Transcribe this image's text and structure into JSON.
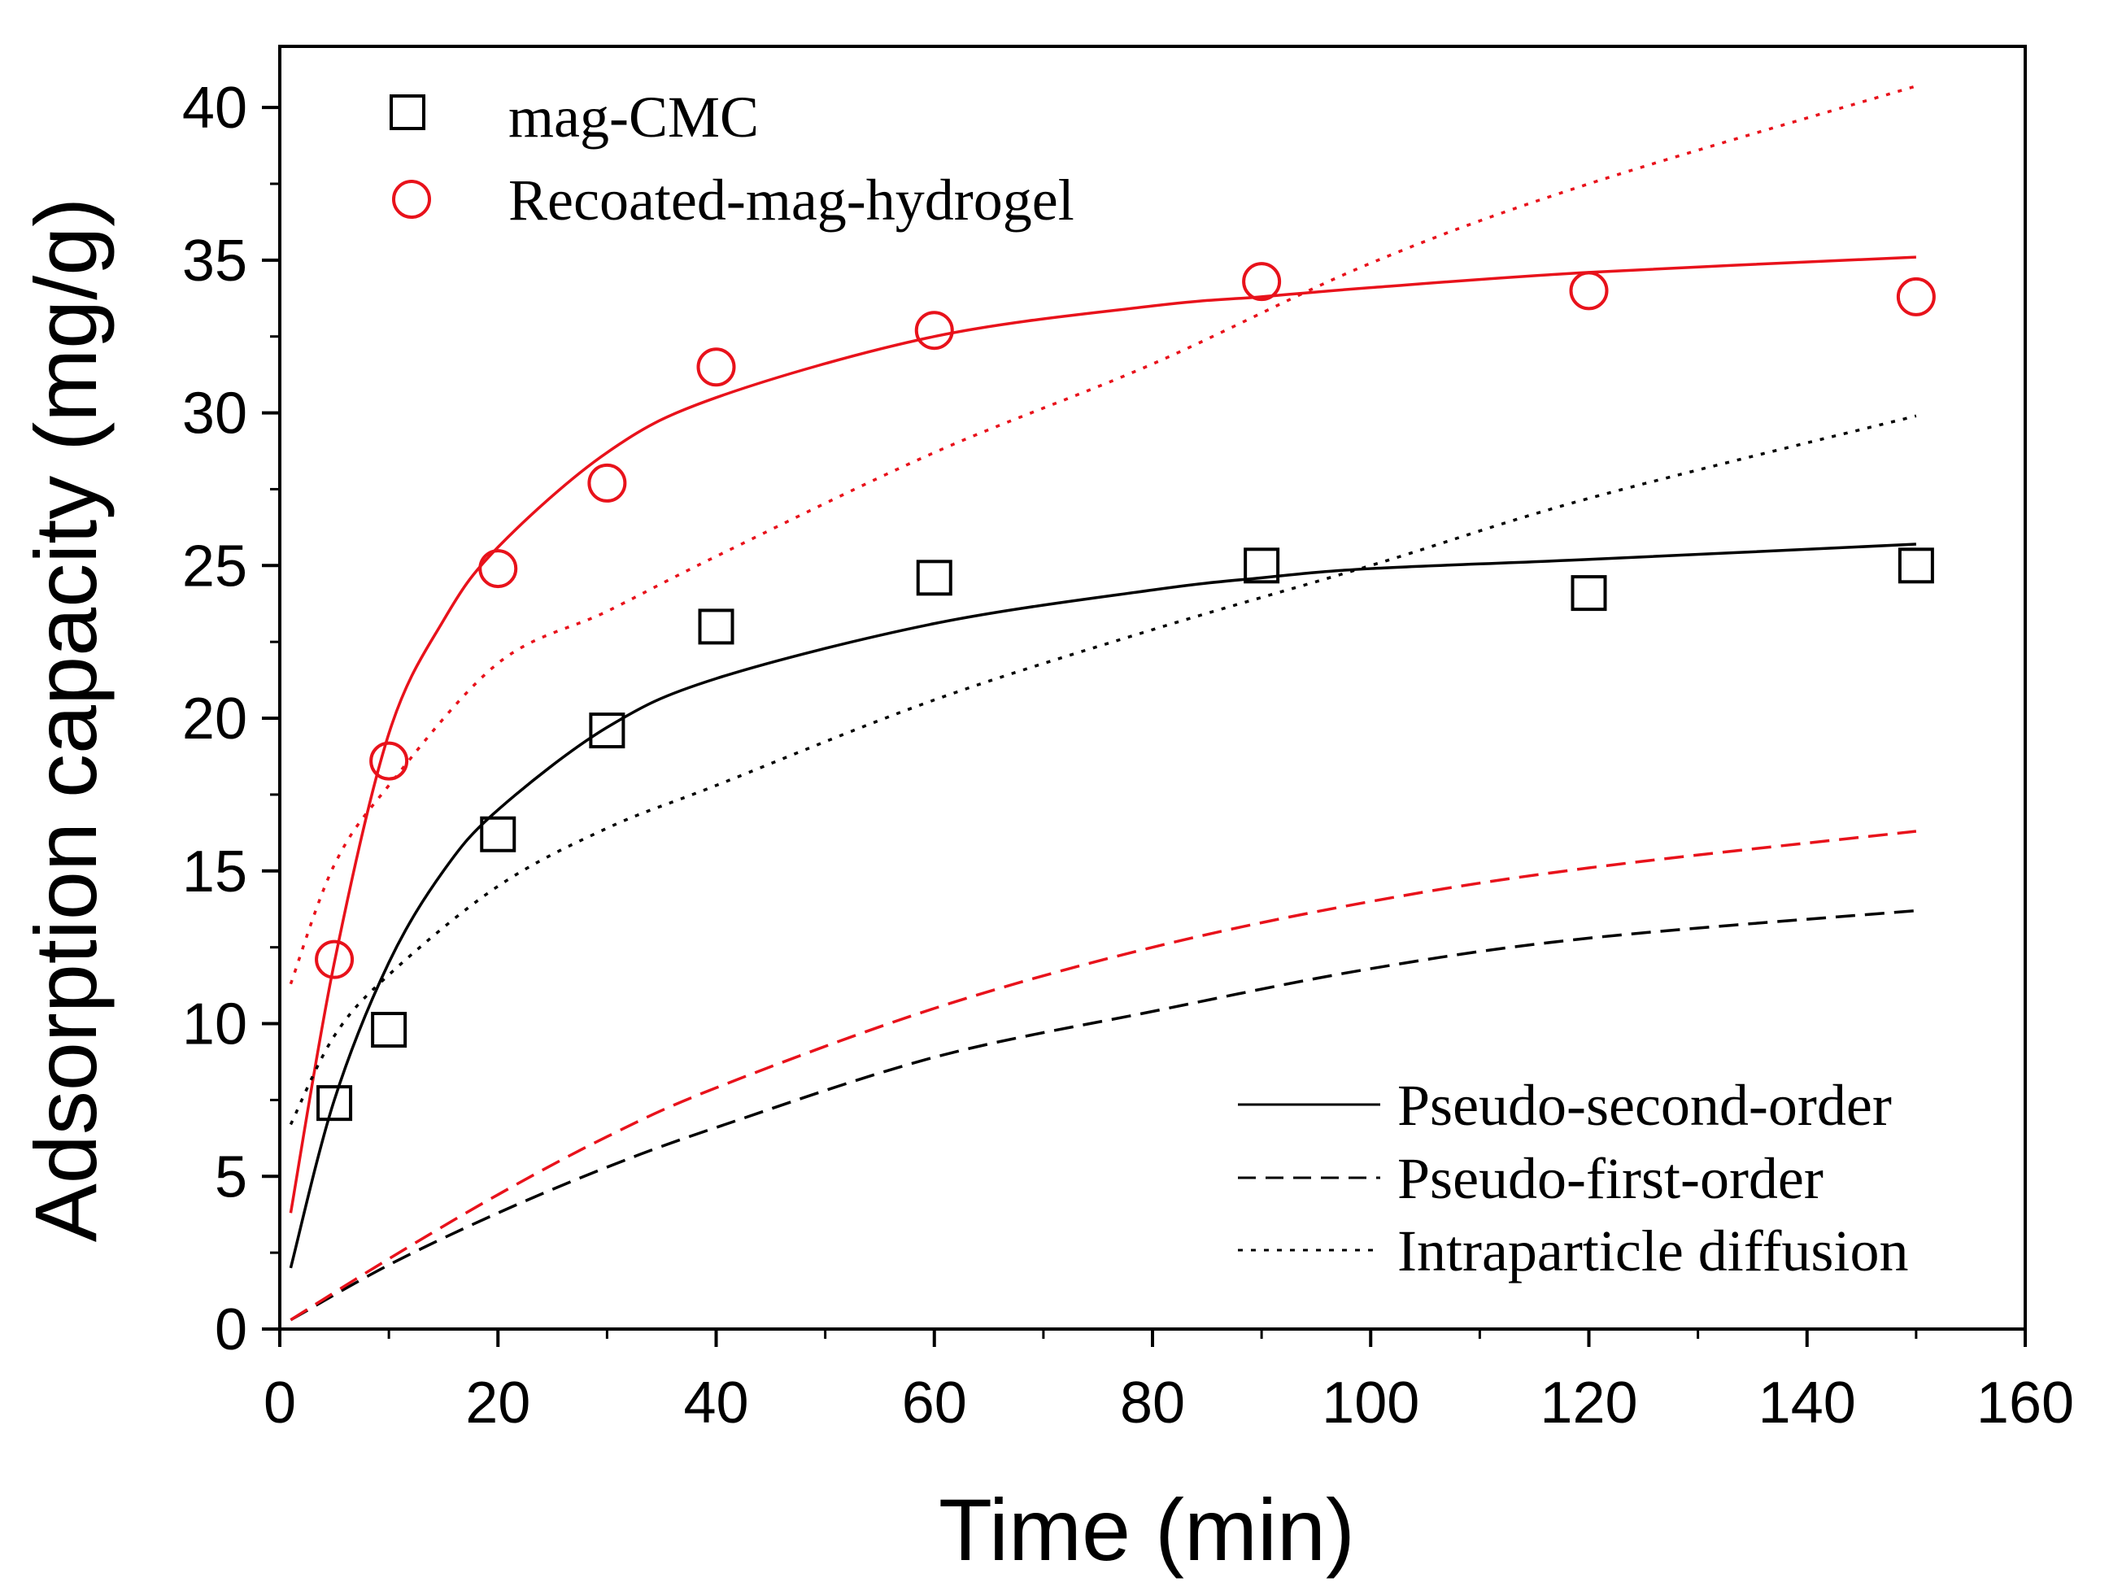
{
  "chart_data": {
    "type": "scatter",
    "title": "",
    "xlabel": "Time (min)",
    "ylabel": "Adsorption capacity (mg/g)",
    "xlim": [
      0,
      160
    ],
    "ylim": [
      0,
      42
    ],
    "xticks": [
      0,
      20,
      40,
      60,
      80,
      100,
      120,
      140,
      160
    ],
    "yticks": [
      0,
      5,
      10,
      15,
      20,
      25,
      30,
      35,
      40
    ],
    "grid": false,
    "legend_placement": "top-left",
    "series": [
      {
        "name": "mag-CMC",
        "color": "#000000",
        "marker": "square",
        "x": [
          5,
          10,
          20,
          30,
          40,
          60,
          90,
          120,
          150
        ],
        "y": [
          7.4,
          9.8,
          16.2,
          19.6,
          23.0,
          24.6,
          25.0,
          24.1,
          25.0
        ]
      },
      {
        "name": "Recoated-mag-hydrogel",
        "color": "#e8121b",
        "marker": "circle",
        "x": [
          5,
          10,
          20,
          30,
          40,
          60,
          90,
          120,
          150
        ],
        "y": [
          12.1,
          18.6,
          24.9,
          27.7,
          31.5,
          32.7,
          34.3,
          34.0,
          33.8
        ]
      }
    ],
    "fits": [
      {
        "model": "Pseudo-second-order",
        "series": "mag-CMC",
        "style": "solid",
        "color": "#000000",
        "x": [
          1,
          5,
          10,
          15,
          20,
          30,
          40,
          60,
          80,
          90,
          100,
          120,
          150
        ],
        "y": [
          2.0,
          7.5,
          12.0,
          15.0,
          17.0,
          19.7,
          21.3,
          23.1,
          24.2,
          24.6,
          24.9,
          25.2,
          25.7
        ]
      },
      {
        "model": "Pseudo-second-order",
        "series": "Recoated-mag-hydrogel",
        "style": "solid",
        "color": "#e8121b",
        "x": [
          1,
          5,
          10,
          15,
          20,
          30,
          40,
          60,
          80,
          90,
          100,
          120,
          150
        ],
        "y": [
          3.8,
          12.0,
          19.5,
          23.2,
          25.6,
          28.7,
          30.5,
          32.5,
          33.5,
          33.8,
          34.1,
          34.6,
          35.1
        ]
      },
      {
        "model": "Pseudo-first-order",
        "series": "mag-CMC",
        "style": "dashed",
        "color": "#000000",
        "x": [
          1,
          10,
          20,
          30,
          40,
          60,
          80,
          100,
          120,
          150
        ],
        "y": [
          0.3,
          2.1,
          3.8,
          5.3,
          6.6,
          8.9,
          10.4,
          11.8,
          12.8,
          13.7
        ]
      },
      {
        "model": "Pseudo-first-order",
        "series": "Recoated-mag-hydrogel",
        "style": "dashed",
        "color": "#e8121b",
        "x": [
          1,
          10,
          20,
          30,
          40,
          60,
          80,
          100,
          120,
          150
        ],
        "y": [
          0.3,
          2.3,
          4.4,
          6.3,
          7.9,
          10.5,
          12.5,
          14.0,
          15.1,
          16.3
        ]
      },
      {
        "model": "Intraparticle diffusion",
        "series": "mag-CMC",
        "style": "dotted",
        "color": "#000000",
        "x": [
          1,
          5,
          10,
          20,
          30,
          40,
          60,
          80,
          100,
          120,
          150
        ],
        "y": [
          6.7,
          9.6,
          11.6,
          14.5,
          16.4,
          17.8,
          20.6,
          22.9,
          25.0,
          27.2,
          29.9
        ]
      },
      {
        "model": "Intraparticle diffusion",
        "series": "Recoated-mag-hydrogel",
        "style": "dotted",
        "color": "#e8121b",
        "x": [
          1,
          5,
          10,
          20,
          30,
          40,
          60,
          80,
          100,
          120,
          150
        ],
        "y": [
          11.3,
          15.2,
          17.8,
          21.8,
          23.5,
          25.3,
          28.7,
          31.6,
          34.9,
          37.5,
          40.7
        ]
      }
    ],
    "legend_series": [
      "mag-CMC",
      "Recoated-mag-hydrogel"
    ],
    "legend_fits": [
      "Pseudo-second-order",
      "Pseudo-first-order",
      "Intraparticle diffusion"
    ]
  }
}
